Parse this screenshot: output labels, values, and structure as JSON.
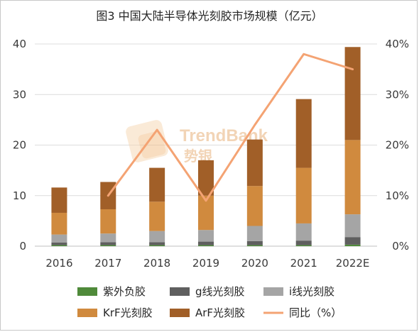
{
  "chart_data": {
    "type": "bar",
    "title": "图3 中国大陆半导体光刻胶市场规模（亿元）",
    "categories": [
      "2016",
      "2017",
      "2018",
      "2019",
      "2020",
      "2021",
      "2022E"
    ],
    "stacked": true,
    "series": [
      {
        "name": "紫外负胶",
        "type": "bar",
        "axis": "left",
        "color": "#4f8a3a",
        "values": [
          0.2,
          0.2,
          0.2,
          0.2,
          0.2,
          0.2,
          0.3
        ]
      },
      {
        "name": "g线光刻胶",
        "type": "bar",
        "axis": "left",
        "color": "#5f5f5f",
        "values": [
          0.5,
          0.6,
          0.6,
          0.7,
          0.8,
          0.9,
          1.5
        ]
      },
      {
        "name": "i线光刻胶",
        "type": "bar",
        "axis": "left",
        "color": "#a5a5a5",
        "values": [
          1.6,
          1.7,
          2.2,
          2.3,
          3.0,
          3.4,
          4.5
        ]
      },
      {
        "name": "KrF光刻胶",
        "type": "bar",
        "axis": "left",
        "color": "#d08a3e",
        "values": [
          4.3,
          4.8,
          5.8,
          6.8,
          7.9,
          11.0,
          14.7
        ]
      },
      {
        "name": "ArF光刻胶",
        "type": "bar",
        "axis": "left",
        "color": "#a15f28",
        "values": [
          5.0,
          5.4,
          6.7,
          7.0,
          9.2,
          13.6,
          18.4
        ]
      },
      {
        "name": "同比（%）",
        "type": "line",
        "axis": "right",
        "color": "#f4a373",
        "values": [
          null,
          10,
          23,
          9,
          24,
          38,
          35
        ]
      }
    ],
    "y_left": {
      "min": 0,
      "max": 40,
      "ticks": [
        "0",
        "10",
        "20",
        "30",
        "40"
      ]
    },
    "y_right": {
      "min": 0,
      "max": 40,
      "ticks": [
        "0%",
        "10%",
        "20%",
        "30%",
        "40%"
      ]
    },
    "grid": true,
    "legend_position": "bottom"
  },
  "watermark": {
    "text_en": "TrendBank",
    "text_cn": "势银",
    "color": "#f2c79a"
  }
}
